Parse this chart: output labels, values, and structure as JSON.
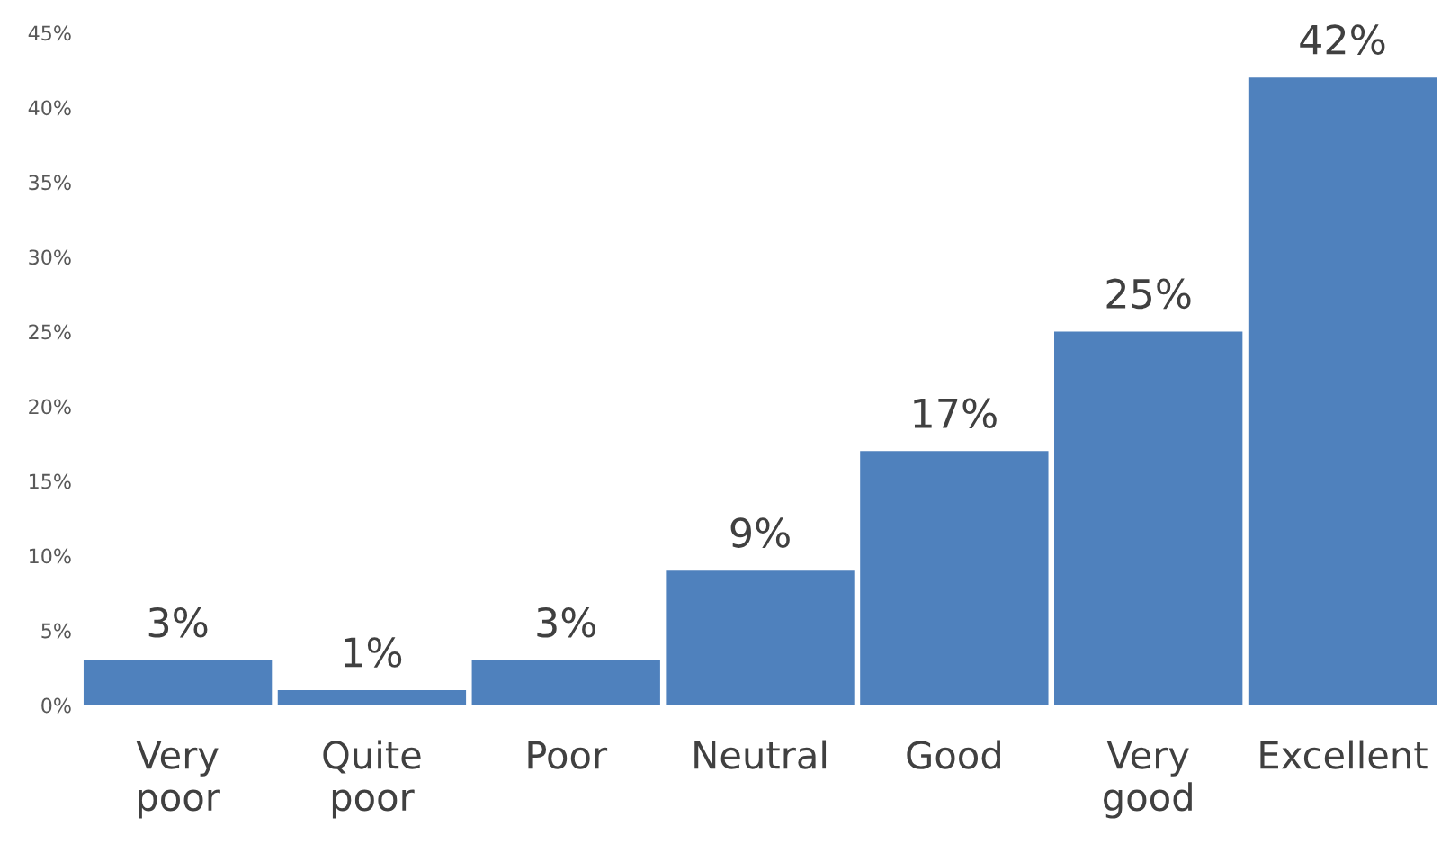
{
  "chart_data": {
    "type": "bar",
    "categories": [
      "Very poor",
      "Quite poor",
      "Poor",
      "Neutral",
      "Good",
      "Very good",
      "Excellent"
    ],
    "values": [
      3,
      1,
      3,
      9,
      17,
      25,
      42
    ],
    "color": "#4f81bd",
    "ylim": [
      0,
      45
    ],
    "yticks": [
      {
        "value": 0,
        "label": "0%"
      },
      {
        "value": 5,
        "label": "5%"
      },
      {
        "value": 10,
        "label": "10%"
      },
      {
        "value": 15,
        "label": "15%"
      },
      {
        "value": 20,
        "label": "20%"
      },
      {
        "value": 25,
        "label": "25%"
      },
      {
        "value": 30,
        "label": "30%"
      },
      {
        "value": 35,
        "label": "35%"
      },
      {
        "value": 40,
        "label": "40%"
      },
      {
        "value": 45,
        "label": "45%"
      }
    ],
    "value_labels": [
      "3%",
      "1%",
      "3%",
      "9%",
      "17%",
      "25%",
      "42%"
    ],
    "grid": false,
    "legend": false
  }
}
